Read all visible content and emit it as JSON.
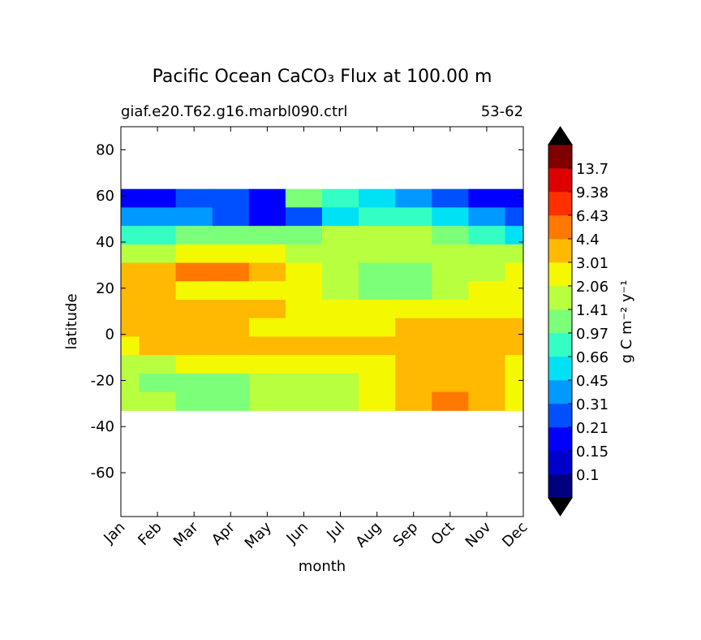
{
  "chart_data": {
    "type": "contour",
    "title": "Pacific Ocean CaCO₃ Flux at 100.00 m",
    "subtitle_left": "giaf.e20.T62.g16.marbl090.ctrl",
    "subtitle_right": "53-62",
    "xlabel": "month",
    "ylabel": "latitude",
    "categories": [
      "Jan",
      "Feb",
      "Mar",
      "Apr",
      "May",
      "Jun",
      "Jul",
      "Aug",
      "Sep",
      "Oct",
      "Nov",
      "Dec"
    ],
    "ylim": [
      -79,
      90
    ],
    "yticks": [
      -60,
      -40,
      -20,
      0,
      20,
      40,
      60,
      80
    ],
    "lat": [
      59,
      51,
      43,
      35,
      27,
      19,
      11,
      3,
      -5,
      -13,
      -21,
      -29
    ],
    "z": [
      [
        0.2,
        0.2,
        0.25,
        0.3,
        0.2,
        1.0,
        0.8,
        0.5,
        0.4,
        0.3,
        0.2,
        0.15
      ],
      [
        0.35,
        0.4,
        0.35,
        0.3,
        0.15,
        0.3,
        0.5,
        0.7,
        0.8,
        0.6,
        0.4,
        0.3
      ],
      [
        0.7,
        0.8,
        1.0,
        1.2,
        1.3,
        1.0,
        1.5,
        1.6,
        1.5,
        1.2,
        0.9,
        0.6
      ],
      [
        1.6,
        1.8,
        2.2,
        2.5,
        2.3,
        1.8,
        1.7,
        1.6,
        1.5,
        1.6,
        1.6,
        1.5
      ],
      [
        3.2,
        3.5,
        4.8,
        5.5,
        4.0,
        2.5,
        1.8,
        1.4,
        1.3,
        1.5,
        2.0,
        2.3
      ],
      [
        3.3,
        3.2,
        2.8,
        2.5,
        2.2,
        2.1,
        1.7,
        1.3,
        1.3,
        1.6,
        2.1,
        2.5
      ],
      [
        3.4,
        3.3,
        3.5,
        3.2,
        3.1,
        3.0,
        2.8,
        2.5,
        2.4,
        2.2,
        2.3,
        2.5
      ],
      [
        3.5,
        3.4,
        3.3,
        3.2,
        2.8,
        2.5,
        2.6,
        2.8,
        3.2,
        3.3,
        3.4,
        3.5
      ],
      [
        2.5,
        3.2,
        3.3,
        3.2,
        3.1,
        3.3,
        3.4,
        3.5,
        3.6,
        3.3,
        3.2,
        3.3
      ],
      [
        1.8,
        2.0,
        2.2,
        2.3,
        2.4,
        2.3,
        2.5,
        2.7,
        3.3,
        3.5,
        3.2,
        3.0
      ],
      [
        1.6,
        1.4,
        1.2,
        1.3,
        1.6,
        1.8,
        1.9,
        2.3,
        3.3,
        3.5,
        3.3,
        2.5
      ],
      [
        1.5,
        1.5,
        1.3,
        1.4,
        1.6,
        1.7,
        2.0,
        2.3,
        4.0,
        5.0,
        3.5,
        2.2
      ]
    ],
    "levels": [
      0.1,
      0.15,
      0.21,
      0.31,
      0.45,
      0.66,
      0.97,
      1.41,
      2.06,
      3.01,
      4.4,
      6.43,
      9.38,
      13.7
    ],
    "colors": [
      "#00007f",
      "#0000cc",
      "#0000ff",
      "#0050ff",
      "#0099ff",
      "#00e1f5",
      "#33ffc4",
      "#7cff79",
      "#b8ff3f",
      "#f4f800",
      "#ffb900",
      "#ff7800",
      "#ff3000",
      "#dd0000",
      "#800000"
    ],
    "extend_color": "#000000",
    "colorbar_label": "g C m⁻² y⁻¹"
  }
}
